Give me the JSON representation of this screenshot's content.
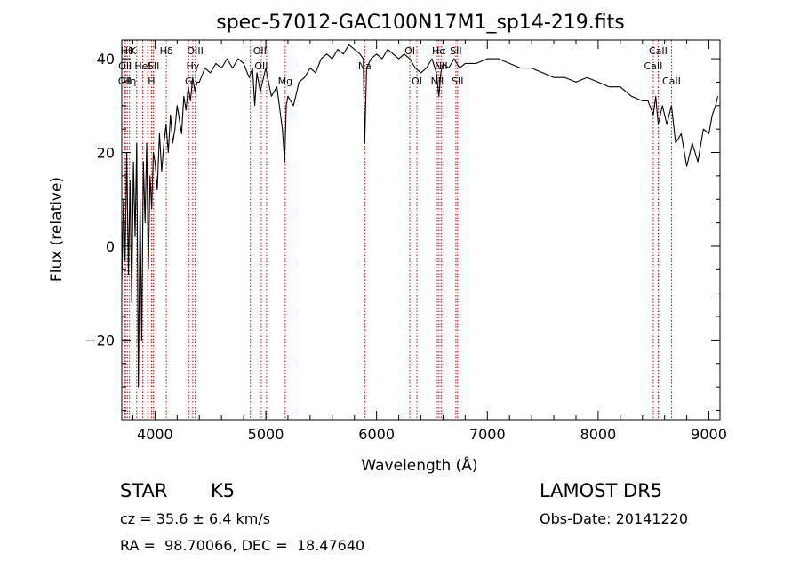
{
  "chart_data": {
    "type": "line",
    "title": "spec-57012-GAC100N17M1_sp14-219.fits",
    "xlabel": "Wavelength (Å)",
    "ylabel": "Flux (relative)",
    "xlim": [
      3700,
      9100
    ],
    "ylim": [
      -37,
      44
    ],
    "x_ticks": [
      4000,
      5000,
      6000,
      7000,
      8000,
      9000
    ],
    "y_ticks": [
      -20,
      0,
      20,
      40
    ],
    "x_tick_labels": [
      "4000",
      "5000",
      "6000",
      "7000",
      "8000",
      "9000"
    ],
    "y_tick_labels": [
      "−20",
      "0",
      "20",
      "40"
    ],
    "grid": false,
    "line_color": "#000000",
    "marker_color": "#cc0000",
    "series": [
      {
        "x": [
          3700,
          3715,
          3730,
          3745,
          3760,
          3775,
          3790,
          3805,
          3820,
          3835,
          3850,
          3865,
          3880,
          3895,
          3910,
          3925,
          3940,
          3955,
          3970,
          3985,
          4000,
          4020,
          4040,
          4060,
          4080,
          4100,
          4120,
          4140,
          4160,
          4180,
          4200,
          4220,
          4240,
          4260,
          4280,
          4300,
          4320,
          4340,
          4360,
          4380,
          4400,
          4450,
          4500,
          4550,
          4600,
          4650,
          4700,
          4750,
          4800,
          4850,
          4880,
          4900,
          4920,
          4950,
          5000,
          5050,
          5100,
          5150,
          5170,
          5185,
          5200,
          5250,
          5300,
          5350,
          5400,
          5450,
          5500,
          5550,
          5600,
          5650,
          5700,
          5750,
          5800,
          5850,
          5880,
          5893,
          5910,
          5950,
          6000,
          6050,
          6100,
          6150,
          6200,
          6250,
          6300,
          6350,
          6400,
          6450,
          6500,
          6540,
          6563,
          6580,
          6600,
          6650,
          6700,
          6750,
          6800,
          6900,
          7000,
          7100,
          7200,
          7300,
          7400,
          7500,
          7600,
          7700,
          7800,
          7900,
          8000,
          8100,
          8200,
          8300,
          8400,
          8450,
          8498,
          8520,
          8542,
          8580,
          8620,
          8662,
          8700,
          8750,
          8800,
          8850,
          8900,
          8950,
          9000,
          9030,
          9060,
          9080
        ],
        "values": [
          -8,
          10,
          -3,
          20,
          -6,
          14,
          -12,
          18,
          2,
          22,
          -30,
          10,
          -20,
          18,
          5,
          22,
          -5,
          15,
          8,
          20,
          18,
          12,
          24,
          16,
          22,
          26,
          20,
          28,
          22,
          25,
          30,
          27,
          24,
          32,
          29,
          34,
          31,
          36,
          33,
          35,
          35,
          38,
          37,
          39,
          38,
          40,
          38,
          40,
          39,
          36,
          38,
          30,
          37,
          33,
          38,
          32,
          34,
          25,
          18,
          30,
          32,
          30,
          35,
          36,
          38,
          37,
          40,
          41,
          40,
          42,
          41,
          43,
          42,
          41,
          40,
          22,
          38,
          40,
          41,
          40,
          42,
          41,
          40,
          41,
          40,
          38,
          37,
          38,
          40,
          37,
          32,
          37,
          39,
          38,
          40,
          38,
          39,
          39,
          40,
          40,
          39,
          38,
          38,
          37,
          36,
          36,
          35,
          36,
          35,
          34,
          34,
          32,
          31,
          31,
          28,
          32,
          26,
          30,
          26,
          30,
          22,
          24,
          17,
          22,
          18,
          25,
          24,
          28,
          30,
          32
        ]
      }
    ],
    "line_markers": [
      {
        "x": 3750,
        "label": "Hθ"
      },
      {
        "x": 3727,
        "label": "OII"
      },
      {
        "x": 3734,
        "label": "OII"
      },
      {
        "x": 3770,
        "label": "Hη"
      },
      {
        "x": 3835,
        "label": "Hη"
      },
      {
        "x": 3934,
        "label": "K"
      },
      {
        "x": 3889,
        "label": "HeI"
      },
      {
        "x": 3968,
        "label": "H"
      },
      {
        "x": 3986,
        "label": "SII"
      },
      {
        "x": 4102,
        "label": "Hδ"
      },
      {
        "x": 4304,
        "label": "G"
      },
      {
        "x": 4341,
        "label": "Hγ"
      },
      {
        "x": 4363,
        "label": "OIII"
      },
      {
        "x": 4861,
        "label": ""
      },
      {
        "x": 4959,
        "label": "OIII"
      },
      {
        "x": 5007,
        "label": "OII"
      },
      {
        "x": 5175,
        "label": "Mg"
      },
      {
        "x": 5893,
        "label": "Na"
      },
      {
        "x": 6300,
        "label": "OI"
      },
      {
        "x": 6364,
        "label": "OI"
      },
      {
        "x": 6548,
        "label": "NII"
      },
      {
        "x": 6563,
        "label": "Hα"
      },
      {
        "x": 6583,
        "label": "NII"
      },
      {
        "x": 6716,
        "label": "SII"
      },
      {
        "x": 6731,
        "label": "SII"
      },
      {
        "x": 8498,
        "label": "CaII"
      },
      {
        "x": 8542,
        "label": "CaII"
      },
      {
        "x": 8662,
        "label": "CaII"
      }
    ],
    "marker_labels": [
      {
        "x": 3750,
        "row": 0,
        "label": "Hθ"
      },
      {
        "x": 3800,
        "row": 0,
        "label": "K"
      },
      {
        "x": 4102,
        "row": 0,
        "label": "Hδ"
      },
      {
        "x": 4363,
        "row": 0,
        "label": "OIII"
      },
      {
        "x": 4959,
        "row": 0,
        "label": "OIII"
      },
      {
        "x": 6300,
        "row": 0,
        "label": "OI"
      },
      {
        "x": 6563,
        "row": 0,
        "label": "Hα"
      },
      {
        "x": 6716,
        "row": 0,
        "label": "SII"
      },
      {
        "x": 8542,
        "row": 0,
        "label": "CaII"
      },
      {
        "x": 3730,
        "row": 1,
        "label": "OII"
      },
      {
        "x": 3889,
        "row": 1,
        "label": "HeI"
      },
      {
        "x": 3986,
        "row": 1,
        "label": "SII"
      },
      {
        "x": 4341,
        "row": 1,
        "label": "Hγ"
      },
      {
        "x": 4959,
        "row": 1,
        "label": "OII"
      },
      {
        "x": 5893,
        "row": 1,
        "label": "Na"
      },
      {
        "x": 6583,
        "row": 1,
        "label": "NII"
      },
      {
        "x": 8498,
        "row": 1,
        "label": "CaII"
      },
      {
        "x": 3727,
        "row": 2,
        "label": "OII"
      },
      {
        "x": 3770,
        "row": 2,
        "label": "Hη"
      },
      {
        "x": 3968,
        "row": 2,
        "label": "H"
      },
      {
        "x": 4304,
        "row": 2,
        "label": "G"
      },
      {
        "x": 5175,
        "row": 2,
        "label": "Mg"
      },
      {
        "x": 6364,
        "row": 2,
        "label": "OI"
      },
      {
        "x": 6548,
        "row": 2,
        "label": "NII"
      },
      {
        "x": 6731,
        "row": 2,
        "label": "SII"
      },
      {
        "x": 8662,
        "row": 2,
        "label": "CaII"
      }
    ]
  },
  "info": {
    "class": "STAR",
    "subclass": "K5",
    "cz": "cz = 35.6 ± 6.4 km/s",
    "radec": "RA =  98.70066, DEC =  18.47640",
    "survey": "LAMOST DR5",
    "obsdate": "Obs-Date: 20141220"
  }
}
